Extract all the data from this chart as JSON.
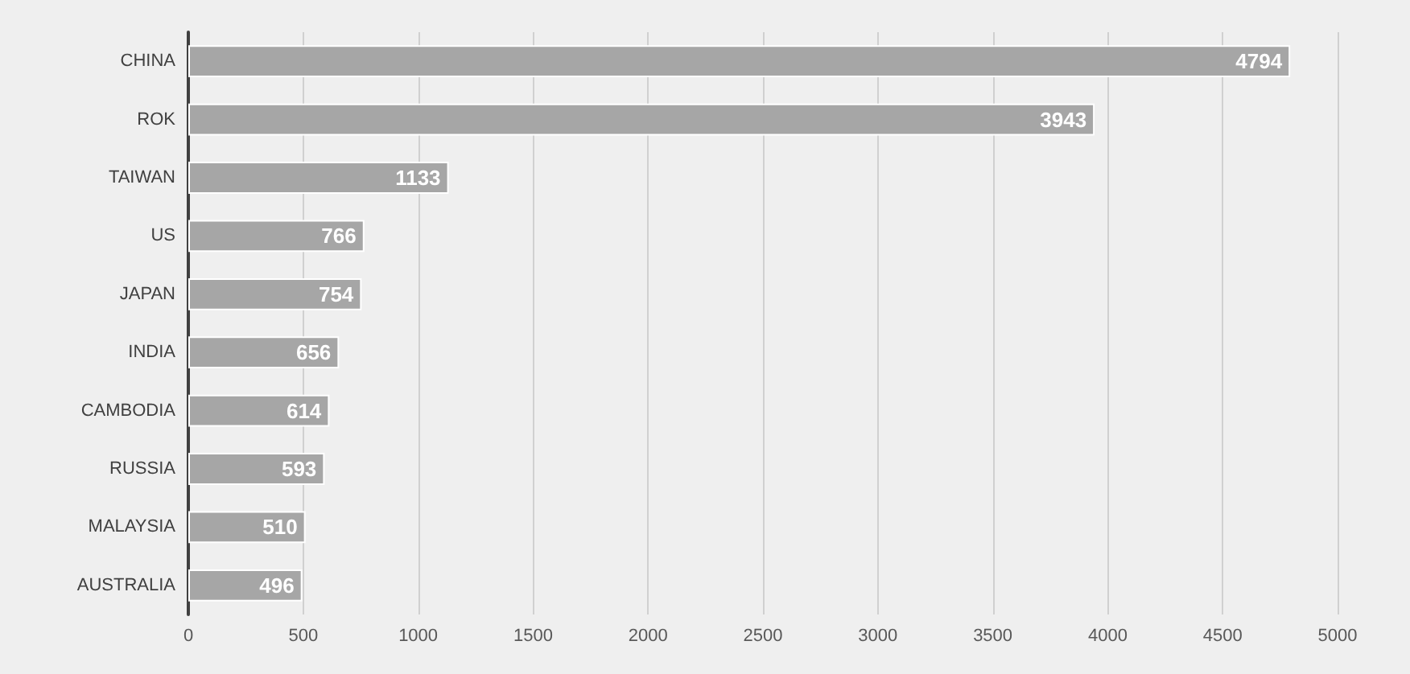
{
  "chart_data": {
    "type": "bar",
    "orientation": "horizontal",
    "categories": [
      "CHINA",
      "ROK",
      "TAIWAN",
      "US",
      "JAPAN",
      "INDIA",
      "CAMBODIA",
      "RUSSIA",
      "MALAYSIA",
      "AUSTRALIA"
    ],
    "values": [
      4794,
      3943,
      1133,
      766,
      754,
      656,
      614,
      593,
      510,
      496
    ],
    "color": "#a6a6a6",
    "xlim": [
      0,
      5000
    ],
    "xticks": [
      0,
      500,
      1000,
      1500,
      2000,
      2500,
      3000,
      3500,
      4000,
      4500,
      5000
    ],
    "grid": "x",
    "data_labels": true
  }
}
